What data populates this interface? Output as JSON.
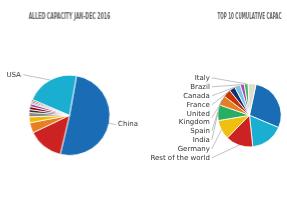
{
  "chart_data": [
    {
      "type": "pie",
      "title": "ALLED CAPACITY JAN-DEC 2016",
      "categories": [
        "China",
        null,
        null,
        null,
        null,
        null,
        null,
        null,
        null,
        null,
        null,
        "USA"
      ],
      "values": [
        43,
        12,
        3.5,
        2,
        1.5,
        1,
        1,
        1,
        0.5,
        0.5,
        0.5,
        18
      ],
      "colors": [
        "#1a6db5",
        "#cc2222",
        "#e67e22",
        "#f0b800",
        "#888888",
        "#333333",
        "#8b0000",
        "#aa44aa",
        "#44bb66",
        "#2c3e50",
        "#aa2222",
        "#1aafd0"
      ]
    },
    {
      "type": "pie",
      "title": "TOP 10 CUMULATIVE CAPAC",
      "categories": [
        null,
        null,
        "Rest of the world",
        "Germany",
        "India",
        "Spain",
        "United\nKingdom",
        "France",
        "Canada",
        "Brazil",
        "Italy",
        null
      ],
      "values": [
        28,
        17,
        14,
        10,
        8,
        5,
        4,
        3,
        3,
        2,
        2,
        4
      ],
      "colors": [
        "#1a6db5",
        "#1aafd0",
        "#cc2222",
        "#f0c010",
        "#27ae60",
        "#e67e22",
        "#cc3300",
        "#1a2f6f",
        "#77c5e0",
        "#aa44bb",
        "#44bb55",
        "#ddddcc"
      ]
    }
  ]
}
